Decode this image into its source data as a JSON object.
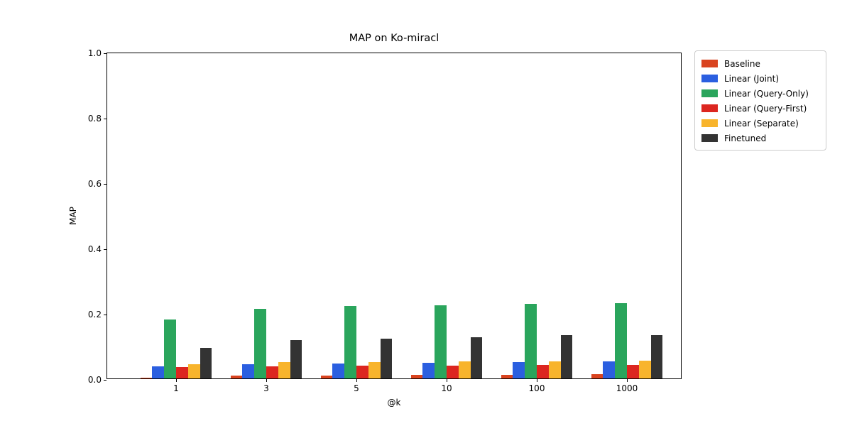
{
  "title": "MAP on Ko-miracl",
  "chart_data": {
    "type": "bar",
    "title": "MAP on Ko-miracl",
    "xlabel": "@k",
    "ylabel": "MAP",
    "categories": [
      "1",
      "3",
      "5",
      "10",
      "100",
      "1000"
    ],
    "series": [
      {
        "name": "Baseline",
        "color": "#d9431f",
        "values": [
          0.003,
          0.009,
          0.009,
          0.011,
          0.011,
          0.012
        ]
      },
      {
        "name": "Linear (Joint)",
        "color": "#2b5fe0",
        "values": [
          0.036,
          0.043,
          0.046,
          0.048,
          0.051,
          0.053
        ]
      },
      {
        "name": "Linear (Query-Only)",
        "color": "#2aa55c",
        "values": [
          0.181,
          0.213,
          0.221,
          0.223,
          0.228,
          0.23
        ]
      },
      {
        "name": "Linear (Query-First)",
        "color": "#dc2620",
        "values": [
          0.034,
          0.038,
          0.04,
          0.04,
          0.041,
          0.041
        ]
      },
      {
        "name": "Linear (Separate)",
        "color": "#f8b42c",
        "values": [
          0.044,
          0.049,
          0.05,
          0.052,
          0.052,
          0.054
        ]
      },
      {
        "name": "Finetuned",
        "color": "#333333",
        "values": [
          0.094,
          0.118,
          0.122,
          0.127,
          0.132,
          0.133
        ]
      }
    ],
    "ylim": [
      0.0,
      1.0
    ],
    "yticks": [
      "0.0",
      "0.2",
      "0.4",
      "0.6",
      "0.8",
      "1.0"
    ],
    "grid": false,
    "legend_position": "outside-top-right"
  }
}
